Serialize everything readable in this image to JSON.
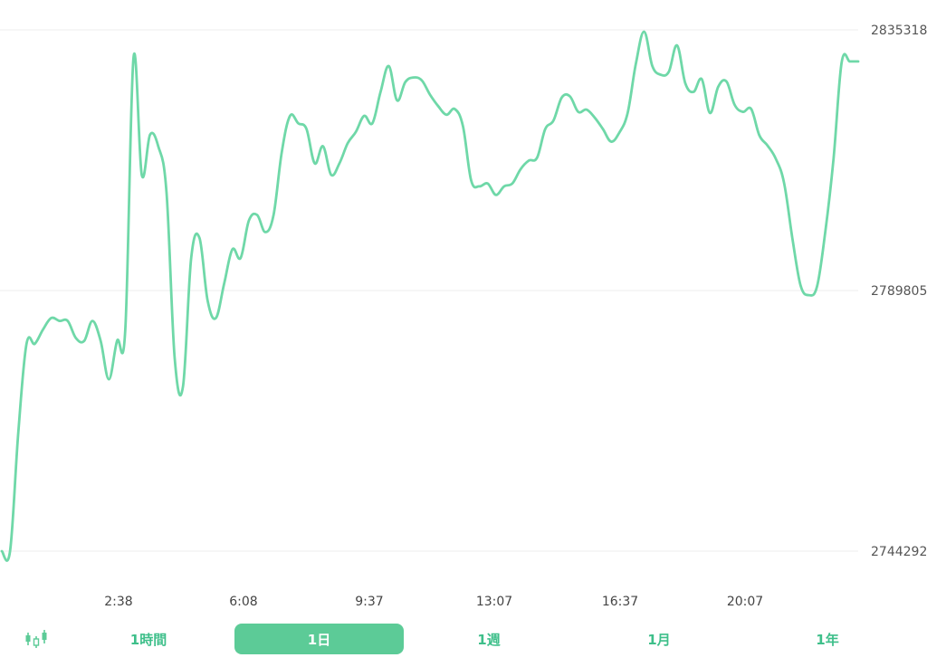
{
  "colors": {
    "line": "#6fd8a8",
    "grid": "#eeeeee",
    "accent": "#5ccb97",
    "tab_text": "#3ebf8a"
  },
  "chart_data": {
    "type": "line",
    "y_ticks": [
      "2835318",
      "2789805",
      "2744292"
    ],
    "ylim": [
      2744292,
      2835318
    ],
    "x_ticks": [
      "2:38",
      "6:08",
      "9:37",
      "13:07",
      "16:37",
      "20:07"
    ],
    "grid": "horizontal",
    "series": [
      {
        "values": [
          2744292,
          2744292,
          2765000,
          2780500,
          2780500,
          2783000,
          2785000,
          2784500,
          2784500,
          2781500,
          2781000,
          2784500,
          2781000,
          2774300,
          2781000,
          2783000,
          2830500,
          2810000,
          2817000,
          2815000,
          2807000,
          2777900,
          2773000,
          2795500,
          2799000,
          2788000,
          2785000,
          2791000,
          2797000,
          2795500,
          2802000,
          2803000,
          2800000,
          2803000,
          2814000,
          2820300,
          2819000,
          2818000,
          2812000,
          2815000,
          2810000,
          2812000,
          2815500,
          2817500,
          2820300,
          2819000,
          2824500,
          2829000,
          2823000,
          2826200,
          2827000,
          2826500,
          2824000,
          2822000,
          2820500,
          2821500,
          2818500,
          2809000,
          2808000,
          2808500,
          2806500,
          2808000,
          2808500,
          2811000,
          2812500,
          2813000,
          2818000,
          2819500,
          2823500,
          2823700,
          2821000,
          2821400,
          2820000,
          2818000,
          2815800,
          2817400,
          2820800,
          2829400,
          2835000,
          2829000,
          2827500,
          2828000,
          2832600,
          2826000,
          2824500,
          2826700,
          2820800,
          2825400,
          2826300,
          2822200,
          2821000,
          2821500,
          2816900,
          2815100,
          2812800,
          2808600,
          2799000,
          2790700,
          2789000,
          2790500,
          2800000,
          2812700,
          2829700,
          2829800,
          2829800
        ]
      }
    ]
  },
  "toolbar": {
    "candle_icon": "candlestick-icon",
    "tabs": [
      {
        "label": "1時間"
      },
      {
        "label": "1日"
      },
      {
        "label": "1週"
      },
      {
        "label": "1月"
      },
      {
        "label": "1年"
      }
    ],
    "active_tab": "1日"
  }
}
